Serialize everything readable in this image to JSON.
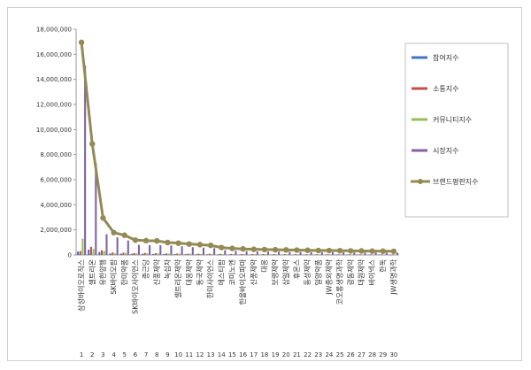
{
  "chart_data": {
    "type": "bar",
    "title": "",
    "xlabel": "",
    "ylabel": "",
    "ylim": [
      0,
      18000000
    ],
    "yticks": [
      "0",
      "2,000,000",
      "4,000,000",
      "6,000,000",
      "8,000,000",
      "10,000,000",
      "12,000,000",
      "14,000,000",
      "16,000,000",
      "18,000,000"
    ],
    "grid": false,
    "legend": "right",
    "x": [
      "1",
      "2",
      "3",
      "4",
      "5",
      "6",
      "7",
      "8",
      "9",
      "10",
      "11",
      "12",
      "13",
      "14",
      "15",
      "16",
      "17",
      "18",
      "19",
      "20",
      "21",
      "22",
      "23",
      "24",
      "25",
      "26",
      "27",
      "28",
      "29",
      "30"
    ],
    "categories": [
      "삼성바이오로직스",
      "셀트리온",
      "유한양행",
      "SK바이오팜",
      "한미약품",
      "SK바이오사이언스",
      "종근당",
      "신풍제약",
      "녹십자",
      "셀트리온제약",
      "대웅제약",
      "동국제약",
      "한미사이언스",
      "에스티팜",
      "코미노엔",
      "한올바이오파마",
      "신풍제약",
      "대웅",
      "보령제약",
      "삼일제약",
      "휴온스",
      "동성제약",
      "일양약품",
      "JW중외제약",
      "코오롱생명과학",
      "광동제약",
      "대원제약",
      "바이넥스",
      "한독",
      "JW생명과학"
    ],
    "series": [
      {
        "name": "참여지수",
        "color": "#4472c4",
        "values": [
          260000,
          420000,
          240000,
          120000,
          110000,
          90000,
          90000,
          80000,
          75000,
          70000,
          60000,
          55000,
          50000,
          45000,
          40000,
          40000,
          38000,
          35000,
          35000,
          33000,
          32000,
          30000,
          30000,
          28000,
          28000,
          27000,
          26000,
          25000,
          25000,
          24000
        ]
      },
      {
        "name": "소통지수",
        "color": "#c0504d",
        "values": [
          300000,
          650000,
          380000,
          200000,
          180000,
          150000,
          160000,
          140000,
          120000,
          110000,
          100000,
          95000,
          90000,
          85000,
          80000,
          75000,
          72000,
          70000,
          68000,
          65000,
          62000,
          60000,
          58000,
          56000,
          55000,
          53000,
          52000,
          50000,
          50000,
          48000
        ]
      },
      {
        "name": "커뮤니티지수",
        "color": "#9bbb59",
        "values": [
          1300000,
          480000,
          300000,
          130000,
          160000,
          130000,
          140000,
          120000,
          100000,
          100000,
          90000,
          85000,
          80000,
          75000,
          70000,
          65000,
          60000,
          58000,
          55000,
          52000,
          50000,
          48000,
          46000,
          45000,
          44000,
          42000,
          40000,
          39000,
          38000,
          37000
        ]
      },
      {
        "name": "시장지수",
        "color": "#8064a2",
        "values": [
          15100000,
          7300000,
          1650000,
          1400000,
          1150000,
          800000,
          780000,
          780000,
          750000,
          680000,
          620000,
          580000,
          540000,
          380000,
          330000,
          300000,
          280000,
          270000,
          260000,
          250000,
          240000,
          230000,
          220000,
          220000,
          210000,
          200000,
          200000,
          190000,
          190000,
          180000
        ]
      }
    ],
    "line": {
      "name": "브랜드평판지수",
      "color": "#948a54",
      "values": [
        16950000,
        8850000,
        2950000,
        1780000,
        1570000,
        1180000,
        1140000,
        1120000,
        990000,
        940000,
        870000,
        820000,
        760000,
        590000,
        520000,
        480000,
        450000,
        430000,
        415000,
        400000,
        385000,
        370000,
        355000,
        350000,
        340000,
        325000,
        320000,
        305000,
        300000,
        290000
      ]
    }
  }
}
